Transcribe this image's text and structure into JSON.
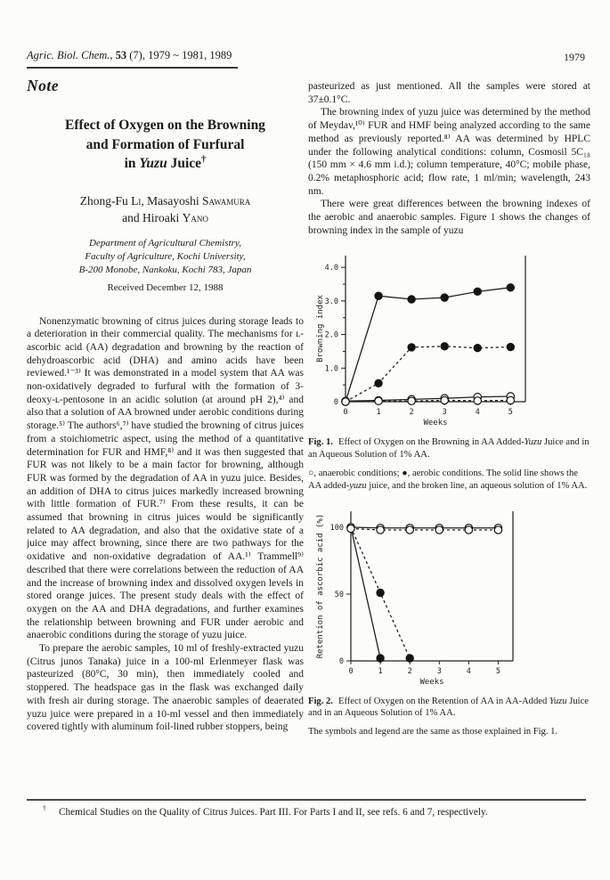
{
  "header": {
    "journal_title": "Agric. Biol. Chem.,",
    "journal_volume": "53",
    "journal_rest": "(7), 1979 ~ 1981, 1989",
    "page_number": "1979"
  },
  "note_label": "Note",
  "title": {
    "line1": "Effect of Oxygen on the Browning",
    "line2": "and Formation of Furfural",
    "line3_pre": "in ",
    "line3_italic": "Yuzu",
    "line3_post": " Juice",
    "dagger": "†"
  },
  "authors": {
    "l1a": "Zhong-Fu ",
    "l1b": "Li",
    "l1c": ", Masayoshi ",
    "l1d": "Sawamura",
    "l2a": "and Hiroaki ",
    "l2b": "Yano"
  },
  "affiliation": {
    "line1": "Department of Agricultural Chemistry,",
    "line2": "Faculty of Agriculture, Kochi University,",
    "line3": "B-200 Monobe, Nankoku, Kochi 783, Japan"
  },
  "received": "Received December 12, 1988",
  "left_column": {
    "p1": "Nonenzymatic browning of citrus juices during storage leads to a deterioration in their commercial quality. The mechanisms for ʟ-ascorbic acid (AA) degradation and browning by the reaction of dehydroascorbic acid (DHA) and amino acids have been reviewed.¹⁻³⁾ It was demonstrated in a model system that AA was non-oxidatively degraded to furfural with the formation of 3-deoxy-ʟ-pentosone in an acidic solution (at around pH 2),⁴⁾ and also that a solution of AA browned under aerobic conditions during storage.⁵⁾ The authors⁶,⁷⁾ have studied the browning of citrus juices from a stoichiometric aspect, using the method of a quantitative determination for FUR and HMF,⁸⁾ and it was then suggested that FUR was not likely to be a main factor for browning, although FUR was formed by the degradation of AA in yuzu juice. Besides, an addition of DHA to citrus juices markedly increased browning with little formation of FUR.⁷⁾ From these results, it can be assumed that browning in citrus juices would be significantly related to AA degradation, and also that the oxidative state of a juice may affect browning, since there are two pathways for the oxidative and non-oxidative degradation of AA.¹⁾ Trammell⁹⁾ described that there were correlations between the reduction of AA and the increase of browning index and dissolved oxygen levels in stored orange juices. The present study deals with the effect of oxygen on the AA and DHA degradations, and further examines the relationship between browning and FUR under aerobic and anaerobic conditions during the storage of yuzu juice.",
    "p2": "To prepare the aerobic samples, 10 ml of freshly-extracted yuzu (Citrus junos Tanaka) juice in a 100-ml Erlenmeyer flask was pasteurized (80°C, 30 min), then immediately cooled and stoppered. The headspace gas in the flask was exchanged daily with fresh air during storage. The anaerobic samples of deaerated yuzu juice were prepared in a 10-ml vessel and then immediately covered tightly with aluminum foil-lined rubber stoppers, being"
  },
  "right_column": {
    "p1": "pasteurized as just mentioned. All the samples were stored at 37±0.1°C.",
    "p2": "The browning index of yuzu juice was determined by the method of Meydav,¹⁰⁾ FUR and HMF being analyzed according to the same method as previously reported.⁸⁾ AA was determined by HPLC under the following analytical conditions: column, Cosmosil 5C₁₈ (150 mm × 4.6 mm i.d.); column temperature, 40°C; mobile phase, 0.2% metaphosphoric acid; flow rate, 1 ml/min; wavelength, 243 nm.",
    "p3": "There were great differences between the browning indexes of the aerobic and anaerobic samples. Figure 1 shows the changes of browning index in the sample of yuzu"
  },
  "fig1": {
    "caption_label": "Fig. 1.",
    "caption_pre": "Effect of Oxygen on the Browning in AA Added-",
    "caption_italic": "Yuzu",
    "caption_post": " Juice and in an Aqueous Solution of 1% AA.",
    "legend_pre": "○, anaerobic conditions; ●, aerobic conditions. The solid line shows the AA added-",
    "legend_italic": "yuzu",
    "legend_post": " juice, and the broken line, an aqueous solution of 1% AA."
  },
  "fig2": {
    "caption_label": "Fig. 2.",
    "caption_pre": "Effect of Oxygen on the Retention of AA in AA-Added ",
    "caption_italic": "Yuzu",
    "caption_post": " Juice and in an Aqueous Solution of 1% AA.",
    "note": "The symbols and legend are the same as those explained in Fig. 1."
  },
  "footnote": {
    "symbol": "†",
    "text": "Chemical Studies on the Quality of Citrus Juices. Part III. For Parts I and II, see refs. 6 and 7, respectively."
  },
  "chart_data": [
    {
      "type": "line",
      "title": "",
      "xlabel": "Weeks",
      "ylabel": "Browning index",
      "xlim": [
        0,
        5.45
      ],
      "ylim": [
        0,
        4.35
      ],
      "xticks": [
        0,
        1,
        2,
        3,
        4,
        5
      ],
      "xtick_labels": [
        "0",
        "1",
        "2",
        "3",
        "4",
        "5"
      ],
      "yticks": [
        0,
        1,
        2,
        3,
        4
      ],
      "ytick_labels": [
        "0",
        "1.0",
        "2.0",
        "3.0",
        "4.0"
      ],
      "yticks_minor": [
        0.5,
        1.5,
        2.5,
        3.5
      ],
      "grid": false,
      "legend_position": "none",
      "series": [
        {
          "name": "aerobic, AA added-yuzu juice",
          "line": "solid",
          "marker": "filled",
          "x": [
            0,
            1,
            2,
            3,
            4,
            5
          ],
          "y": [
            0,
            3.15,
            3.05,
            3.1,
            3.28,
            3.4
          ]
        },
        {
          "name": "aerobic, aqueous solution of 1% AA",
          "line": "dashed",
          "marker": "filled",
          "x": [
            0,
            1,
            2,
            3,
            4,
            5
          ],
          "y": [
            0,
            0.55,
            1.62,
            1.65,
            1.6,
            1.63
          ]
        },
        {
          "name": "anaerobic, AA added-yuzu juice",
          "line": "solid",
          "marker": "open",
          "x": [
            0,
            1,
            2,
            3,
            4,
            5
          ],
          "y": [
            0.02,
            0.04,
            0.07,
            0.1,
            0.14,
            0.16
          ]
        },
        {
          "name": "anaerobic, aqueous solution of 1% AA",
          "line": "dashed",
          "marker": "open",
          "x": [
            0,
            1,
            2,
            3,
            4,
            5
          ],
          "y": [
            0,
            0.02,
            0.02,
            0.04,
            0.03,
            0.04
          ]
        }
      ]
    },
    {
      "type": "line",
      "title": "",
      "xlabel": "Weeks",
      "ylabel": "Retention of ascorbic acid (%)",
      "xlim": [
        0,
        5.5
      ],
      "ylim": [
        0,
        112
      ],
      "xticks": [
        0,
        1,
        2,
        3,
        4,
        5
      ],
      "xtick_labels": [
        "0",
        "1",
        "2",
        "3",
        "4",
        "5"
      ],
      "yticks": [
        0,
        50,
        100
      ],
      "ytick_labels": [
        "0",
        "50",
        "100"
      ],
      "yticks_minor": [],
      "grid": false,
      "legend_position": "none",
      "series": [
        {
          "name": "aerobic, AA added-yuzu juice",
          "line": "solid",
          "marker": "filled",
          "x": [
            0,
            1
          ],
          "y": [
            100,
            2
          ]
        },
        {
          "name": "aerobic, aqueous solution of 1% AA",
          "line": "dashed",
          "marker": "filled",
          "x": [
            0,
            1,
            2
          ],
          "y": [
            100,
            51,
            2
          ]
        },
        {
          "name": "anaerobic, AA added-yuzu juice",
          "line": "solid",
          "marker": "open",
          "x": [
            0,
            1,
            2,
            3,
            4,
            5
          ],
          "y": [
            100,
            99.5,
            99.5,
            99.5,
            99.5,
            99.5
          ]
        },
        {
          "name": "anaerobic, aqueous solution of 1% AA",
          "line": "dashed",
          "marker": "open",
          "x": [
            0,
            1,
            2,
            3,
            4,
            5
          ],
          "y": [
            99,
            98,
            98,
            98,
            98,
            98
          ]
        }
      ]
    }
  ]
}
